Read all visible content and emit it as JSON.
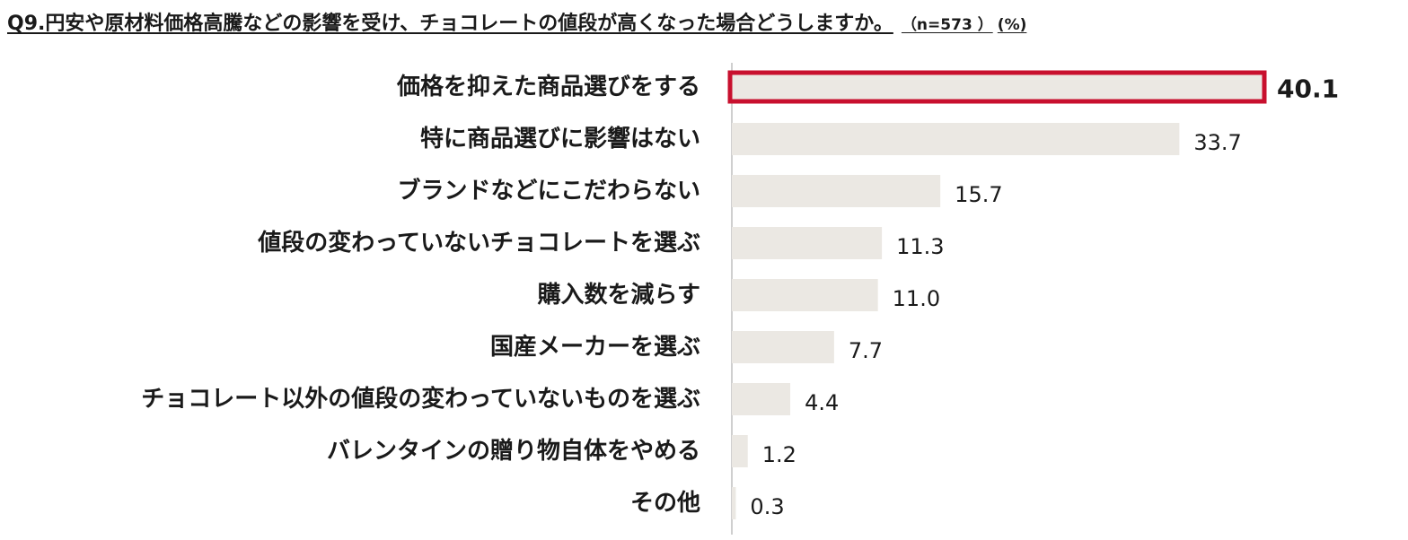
{
  "title": {
    "main": "Q9.円安や原材料価格高騰などの影響を受け、チョコレートの値段が高くなった場合どうしますか。",
    "sample": "（n=573 ）",
    "unit": "(%)"
  },
  "colors": {
    "bar": "#ebe8e3",
    "highlight_border": "#c8102e",
    "axis": "#bfbfbf",
    "text": "#1a1a1a"
  },
  "chart_data": {
    "type": "bar",
    "orientation": "horizontal",
    "title": "Q9.円安や原材料価格高騰などの影響を受け、チョコレートの値段が高くなった場合どうしますか。",
    "xlabel": "",
    "ylabel": "",
    "unit": "(%)",
    "xlim": [
      0,
      40.1
    ],
    "grid": false,
    "highlight_index": 0,
    "categories": [
      "価格を抑えた商品選びをする",
      "特に商品選びに影響はない",
      "ブランドなどにこだわらない",
      "値段の変わっていないチョコレートを選ぶ",
      "購入数を減らす",
      "国産メーカーを選ぶ",
      "チョコレート以外の値段の変わっていないものを選ぶ",
      "バレンタインの贈り物自体をやめる",
      "その他"
    ],
    "values": [
      40.1,
      33.7,
      15.7,
      11.3,
      11.0,
      7.7,
      4.4,
      1.2,
      0.3
    ],
    "value_labels": [
      "40.1",
      "33.7",
      "15.7",
      "11.3",
      "11.0",
      "7.7",
      "4.4",
      "1.2",
      "0.3"
    ]
  }
}
